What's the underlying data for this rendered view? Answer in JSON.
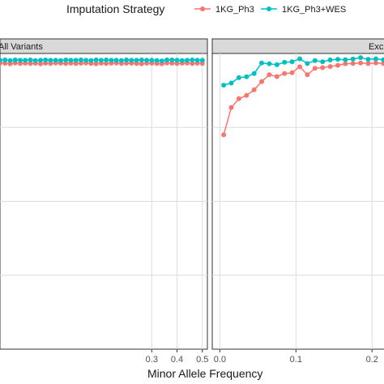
{
  "chart_data": {
    "type": "line",
    "legend": {
      "title": "Imputation Strategy",
      "placement": "top",
      "entries": [
        {
          "name": "1KG_Ph3",
          "color": "#f8766d"
        },
        {
          "name": "1KG_Ph3+WES",
          "color": "#00bfc4"
        }
      ]
    },
    "xlabel": "Minor Allele Frequency",
    "grid": true,
    "panels": [
      {
        "strip": "All Variants",
        "xlim": [
          -0.3,
          0.52
        ],
        "xticks": [
          0.3,
          0.4,
          0.5
        ],
        "xtick_labels": [
          "0.3",
          "0.4",
          "0.5"
        ],
        "ylim": [
          0,
          1
        ],
        "series": [
          {
            "name": "1KG_Ph3",
            "x": [
              -0.3,
              -0.28,
              -0.26,
              -0.24,
              -0.22,
              -0.2,
              -0.18,
              -0.16,
              -0.14,
              -0.12,
              -0.1,
              -0.08,
              -0.06,
              -0.04,
              -0.02,
              0,
              0.02,
              0.04,
              0.06,
              0.08,
              0.1,
              0.12,
              0.14,
              0.16,
              0.18,
              0.2,
              0.22,
              0.24,
              0.26,
              0.28,
              0.3,
              0.32,
              0.34,
              0.36,
              0.38,
              0.4,
              0.42,
              0.44,
              0.46,
              0.48,
              0.5
            ],
            "y": [
              0.967,
              0.967,
              0.965,
              0.968,
              0.966,
              0.967,
              0.966,
              0.967,
              0.965,
              0.967,
              0.966,
              0.968,
              0.967,
              0.966,
              0.967,
              0.966,
              0.967,
              0.968,
              0.966,
              0.965,
              0.967,
              0.966,
              0.967,
              0.968,
              0.966,
              0.967,
              0.967,
              0.966,
              0.965,
              0.967,
              0.967,
              0.966,
              0.965,
              0.968,
              0.967,
              0.966,
              0.967,
              0.968,
              0.966,
              0.967,
              0.966
            ]
          },
          {
            "name": "1KG_Ph3+WES",
            "x": [
              -0.3,
              -0.28,
              -0.26,
              -0.24,
              -0.22,
              -0.2,
              -0.18,
              -0.16,
              -0.14,
              -0.12,
              -0.1,
              -0.08,
              -0.06,
              -0.04,
              -0.02,
              0,
              0.02,
              0.04,
              0.06,
              0.08,
              0.1,
              0.12,
              0.14,
              0.16,
              0.18,
              0.2,
              0.22,
              0.24,
              0.26,
              0.28,
              0.3,
              0.32,
              0.34,
              0.36,
              0.38,
              0.4,
              0.42,
              0.44,
              0.46,
              0.48,
              0.5
            ],
            "y": [
              0.977,
              0.978,
              0.976,
              0.978,
              0.977,
              0.977,
              0.978,
              0.976,
              0.977,
              0.978,
              0.977,
              0.977,
              0.976,
              0.978,
              0.977,
              0.977,
              0.978,
              0.977,
              0.976,
              0.978,
              0.977,
              0.978,
              0.977,
              0.977,
              0.976,
              0.978,
              0.977,
              0.977,
              0.978,
              0.977,
              0.977,
              0.976,
              0.975,
              0.978,
              0.978,
              0.977,
              0.976,
              0.977,
              0.978,
              0.977,
              0.977
            ]
          }
        ]
      },
      {
        "strip": "Exc",
        "xlim": [
          -0.01,
          0.22
        ],
        "xticks": [
          0.0,
          0.1,
          0.2
        ],
        "xtick_labels": [
          "0.0",
          "0.1",
          "0.2"
        ],
        "ylim": [
          0,
          1
        ],
        "series": [
          {
            "name": "1KG_Ph3",
            "x": [
              0.005,
              0.015,
              0.025,
              0.035,
              0.045,
              0.055,
              0.065,
              0.075,
              0.085,
              0.095,
              0.105,
              0.115,
              0.125,
              0.135,
              0.145,
              0.155,
              0.165,
              0.175,
              0.185,
              0.195,
              0.205,
              0.215
            ],
            "y": [
              0.725,
              0.817,
              0.847,
              0.858,
              0.877,
              0.905,
              0.928,
              0.922,
              0.932,
              0.935,
              0.955,
              0.928,
              0.95,
              0.952,
              0.956,
              0.96,
              0.965,
              0.966,
              0.968,
              0.966,
              0.968,
              0.966
            ]
          },
          {
            "name": "1KG_Ph3+WES",
            "x": [
              0.005,
              0.015,
              0.025,
              0.035,
              0.045,
              0.055,
              0.065,
              0.075,
              0.085,
              0.095,
              0.105,
              0.115,
              0.125,
              0.135,
              0.145,
              0.155,
              0.165,
              0.175,
              0.185,
              0.195,
              0.205,
              0.215
            ],
            "y": [
              0.893,
              0.9,
              0.918,
              0.921,
              0.932,
              0.968,
              0.965,
              0.962,
              0.97,
              0.972,
              0.982,
              0.966,
              0.976,
              0.972,
              0.978,
              0.98,
              0.979,
              0.981,
              0.986,
              0.98,
              0.982,
              0.979
            ]
          }
        ]
      }
    ]
  }
}
